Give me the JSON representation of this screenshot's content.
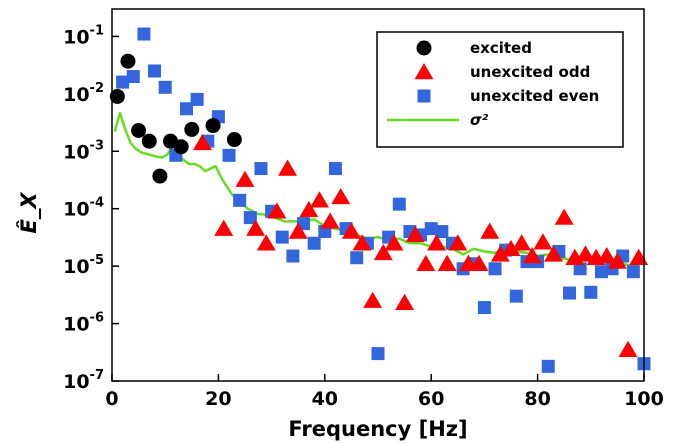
{
  "chart_data": {
    "type": "scatter",
    "xlabel": "Frequency [Hz]",
    "ylabel": "Ê_X",
    "xlim": [
      0,
      100
    ],
    "ylim": [
      1e-07,
      0.3
    ],
    "yscale": "log",
    "xticks": [
      "0",
      "20",
      "40",
      "60",
      "80",
      "100"
    ],
    "xtick_values": [
      0,
      20,
      40,
      60,
      80,
      100
    ],
    "yticks": [
      {
        "base": "10",
        "exp": "-7",
        "value": 1e-07
      },
      {
        "base": "10",
        "exp": "-6",
        "value": 1e-06
      },
      {
        "base": "10",
        "exp": "-5",
        "value": 1e-05
      },
      {
        "base": "10",
        "exp": "-4",
        "value": 0.0001
      },
      {
        "base": "10",
        "exp": "-3",
        "value": 0.001
      },
      {
        "base": "10",
        "exp": "-2",
        "value": 0.01
      },
      {
        "base": "10",
        "exp": "-1",
        "value": 0.1
      }
    ],
    "grid": false,
    "legend_position": "top-right",
    "series": [
      {
        "name": "excited",
        "marker": "circle",
        "color": "#000000",
        "points": [
          [
            1,
            0.009
          ],
          [
            3,
            0.037
          ],
          [
            5,
            0.0023
          ],
          [
            7,
            0.0015
          ],
          [
            9,
            0.00037
          ],
          [
            11,
            0.0015
          ],
          [
            13,
            0.0012
          ],
          [
            15,
            0.0024
          ],
          [
            19,
            0.0028
          ],
          [
            23,
            0.0016
          ]
        ]
      },
      {
        "name": "unexcited odd",
        "marker": "triangle",
        "color": "#ff0000",
        "points": [
          [
            17,
            0.0014
          ],
          [
            21,
            4.5e-05
          ],
          [
            25,
            0.00032
          ],
          [
            27,
            4.5e-05
          ],
          [
            29,
            2.5e-05
          ],
          [
            31,
            9e-05
          ],
          [
            33,
            0.0005
          ],
          [
            35,
            4e-05
          ],
          [
            37,
            9.5e-05
          ],
          [
            39,
            0.00014
          ],
          [
            41,
            6e-05
          ],
          [
            43,
            0.00016
          ],
          [
            45,
            4e-05
          ],
          [
            47,
            2.5e-05
          ],
          [
            49,
            2.5e-06
          ],
          [
            51,
            1.7e-05
          ],
          [
            53,
            2.5e-05
          ],
          [
            55,
            2.3e-06
          ],
          [
            57,
            3.5e-05
          ],
          [
            59,
            1.1e-05
          ],
          [
            61,
            2.5e-05
          ],
          [
            63,
            1.1e-05
          ],
          [
            65,
            2.5e-05
          ],
          [
            67,
            1.1e-05
          ],
          [
            69,
            1.1e-05
          ],
          [
            71,
            4e-05
          ],
          [
            73,
            1.6e-05
          ],
          [
            75,
            2e-05
          ],
          [
            77,
            2.5e-05
          ],
          [
            79,
            1.5e-05
          ],
          [
            81,
            2.6e-05
          ],
          [
            83,
            1.6e-05
          ],
          [
            85,
            7e-05
          ],
          [
            87,
            1.4e-05
          ],
          [
            89,
            1.6e-05
          ],
          [
            91,
            1.4e-05
          ],
          [
            93,
            1.5e-05
          ],
          [
            95,
            1.2e-05
          ],
          [
            97,
            3.5e-07
          ],
          [
            99,
            1.4e-05
          ]
        ]
      },
      {
        "name": "unexcited even",
        "marker": "square",
        "color": "#3366dd",
        "points": [
          [
            2,
            0.016
          ],
          [
            4,
            0.02
          ],
          [
            6,
            0.11
          ],
          [
            8,
            0.025
          ],
          [
            10,
            0.013
          ],
          [
            12,
            0.00085
          ],
          [
            14,
            0.0055
          ],
          [
            16,
            0.008
          ],
          [
            18,
            0.0015
          ],
          [
            20,
            0.004
          ],
          [
            22,
            0.00085
          ],
          [
            24,
            0.00014
          ],
          [
            26,
            7e-05
          ],
          [
            28,
            0.0005
          ],
          [
            30,
            9e-05
          ],
          [
            32,
            3.2e-05
          ],
          [
            34,
            1.5e-05
          ],
          [
            36,
            5.5e-05
          ],
          [
            38,
            2.5e-05
          ],
          [
            40,
            4e-05
          ],
          [
            42,
            0.0005
          ],
          [
            44,
            4.5e-05
          ],
          [
            46,
            1.4e-05
          ],
          [
            48,
            2.5e-05
          ],
          [
            50,
            3e-07
          ],
          [
            52,
            3.2e-05
          ],
          [
            54,
            0.00012
          ],
          [
            56,
            4e-05
          ],
          [
            58,
            3.5e-05
          ],
          [
            60,
            4.5e-05
          ],
          [
            62,
            4e-05
          ],
          [
            64,
            2.5e-05
          ],
          [
            66,
            9e-06
          ],
          [
            68,
            1.1e-05
          ],
          [
            70,
            1.9e-06
          ],
          [
            72,
            9e-06
          ],
          [
            74,
            1.9e-05
          ],
          [
            76,
            3e-06
          ],
          [
            78,
            1.2e-05
          ],
          [
            80,
            1.2e-05
          ],
          [
            82,
            1.8e-07
          ],
          [
            84,
            1.8e-05
          ],
          [
            86,
            3.4e-06
          ],
          [
            88,
            9e-06
          ],
          [
            90,
            3.5e-06
          ],
          [
            92,
            8e-06
          ],
          [
            94,
            9e-06
          ],
          [
            96,
            1.5e-05
          ],
          [
            98,
            8e-06
          ],
          [
            100,
            2e-07
          ]
        ]
      },
      {
        "name": "σ²",
        "marker": "line",
        "color": "#66dd22",
        "points": [
          [
            0.5,
            0.0022
          ],
          [
            1.5,
            0.0046
          ],
          [
            2.5,
            0.0024
          ],
          [
            3.5,
            0.0014
          ],
          [
            4.5,
            0.0011
          ],
          [
            5.5,
            0.00095
          ],
          [
            6.5,
            0.0009
          ],
          [
            7.5,
            0.00085
          ],
          [
            8.5,
            0.0008
          ],
          [
            9.5,
            0.00078
          ],
          [
            10.5,
            0.0009
          ],
          [
            11.5,
            0.0013
          ],
          [
            12.5,
            0.00085
          ],
          [
            13.5,
            0.0007
          ],
          [
            14.5,
            0.0006
          ],
          [
            15.5,
            0.0006
          ],
          [
            16.5,
            0.00055
          ],
          [
            17.5,
            0.00045
          ],
          [
            18.5,
            0.0005
          ],
          [
            19.5,
            0.00055
          ],
          [
            20.5,
            0.00035
          ],
          [
            21.5,
            0.00025
          ],
          [
            22.5,
            0.00018
          ],
          [
            23.5,
            0.00014
          ],
          [
            24.5,
            0.00012
          ],
          [
            25.5,
            0.0001
          ],
          [
            26.5,
            9e-05
          ],
          [
            27.5,
            8e-05
          ],
          [
            28.5,
            8e-05
          ],
          [
            29.5,
            7.5e-05
          ],
          [
            30.5,
            7e-05
          ],
          [
            31.5,
            6.5e-05
          ],
          [
            32.5,
            6e-05
          ],
          [
            34,
            6e-05
          ],
          [
            36,
            6e-05
          ],
          [
            38,
            6.5e-05
          ],
          [
            40,
            5e-05
          ],
          [
            42,
            4.5e-05
          ],
          [
            44,
            4e-05
          ],
          [
            46,
            3.5e-05
          ],
          [
            48,
            3e-05
          ],
          [
            50,
            3.2e-05
          ],
          [
            52,
            2.8e-05
          ],
          [
            54,
            3e-05
          ],
          [
            56,
            2.5e-05
          ],
          [
            58,
            2.5e-05
          ],
          [
            60,
            2.2e-05
          ],
          [
            62,
            2.2e-05
          ],
          [
            64,
            2e-05
          ],
          [
            66,
            1.6e-05
          ],
          [
            68,
            2e-05
          ],
          [
            70,
            1.8e-05
          ],
          [
            72,
            1.7e-05
          ],
          [
            74,
            2e-05
          ],
          [
            76,
            1.8e-05
          ],
          [
            78,
            1.7e-05
          ],
          [
            80,
            1.5e-05
          ],
          [
            82,
            1.6e-05
          ],
          [
            84,
            1.4e-05
          ],
          [
            86,
            1.3e-05
          ],
          [
            88,
            1.3e-05
          ],
          [
            90,
            1.3e-05
          ],
          [
            92,
            1.2e-05
          ],
          [
            94,
            1.3e-05
          ],
          [
            96,
            1.1e-05
          ],
          [
            98,
            1e-05
          ],
          [
            100,
            1.2e-05
          ]
        ]
      }
    ]
  }
}
